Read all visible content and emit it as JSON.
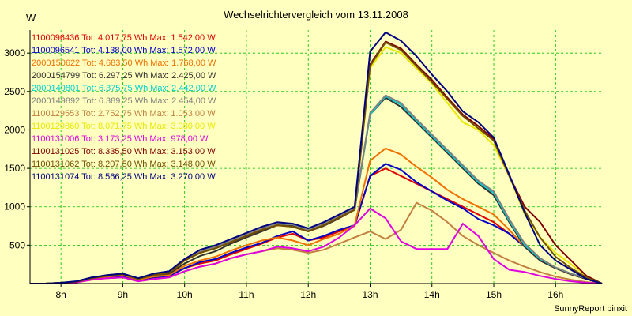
{
  "chart_data": {
    "type": "line",
    "title": "Wechselrichtervergleich vom 13.11.2008",
    "ylabel": "W",
    "footer": "SunnyReport pinxit",
    "x_ticks": [
      "8h",
      "9h",
      "10h",
      "11h",
      "12h",
      "13h",
      "14h",
      "15h",
      "16h"
    ],
    "y_ticks": [
      500,
      1000,
      1500,
      2000,
      2500,
      3000
    ],
    "ylim": [
      0,
      3300
    ],
    "grid": true,
    "legend_position": "top-left",
    "background": "#ffffc0",
    "x_times": [
      "7:30",
      "7:45",
      "8:00",
      "8:15",
      "8:30",
      "8:45",
      "9:00",
      "9:15",
      "9:30",
      "9:45",
      "10:00",
      "10:15",
      "10:30",
      "10:45",
      "11:00",
      "11:15",
      "11:30",
      "11:45",
      "12:00",
      "12:15",
      "12:30",
      "12:45",
      "13:00",
      "13:15",
      "13:30",
      "13:45",
      "14:00",
      "14:15",
      "14:30",
      "14:45",
      "15:00",
      "15:15",
      "15:30",
      "15:45",
      "16:00",
      "16:15",
      "16:30",
      "16:45"
    ],
    "series": [
      {
        "legend": "1100096436 Tot: 4.017,75 Wh Max: 1.542,00 W",
        "color": "#e00000",
        "values": [
          0,
          0,
          10,
          20,
          60,
          80,
          100,
          40,
          80,
          100,
          200,
          260,
          300,
          380,
          450,
          520,
          600,
          650,
          560,
          600,
          680,
          750,
          1400,
          1500,
          1400,
          1300,
          1200,
          1100,
          1000,
          900,
          800,
          650,
          480,
          300,
          200,
          120,
          60,
          0
        ]
      },
      {
        "legend": "1100096541 Tot: 4.138,00 Wh Max: 1.572,00 W",
        "color": "#0000c8",
        "values": [
          0,
          0,
          10,
          20,
          60,
          80,
          100,
          40,
          80,
          100,
          200,
          280,
          320,
          400,
          470,
          530,
          620,
          680,
          560,
          620,
          700,
          760,
          1400,
          1560,
          1480,
          1320,
          1200,
          1080,
          980,
          840,
          760,
          650,
          480,
          300,
          200,
          120,
          60,
          0
        ]
      },
      {
        "legend": "2000150622 Tot: 4.683,50 Wh Max: 1.768,00 W",
        "color": "#f07000",
        "values": [
          0,
          0,
          10,
          20,
          70,
          90,
          110,
          50,
          90,
          110,
          230,
          300,
          350,
          430,
          500,
          560,
          600,
          560,
          500,
          580,
          650,
          760,
          1600,
          1760,
          1680,
          1520,
          1380,
          1220,
          1100,
          1000,
          900,
          700,
          480,
          300,
          200,
          120,
          60,
          0
        ]
      },
      {
        "legend": "2000154799 Tot: 6.297,25 Wh Max: 2.425,00 W",
        "color": "#303030",
        "values": [
          0,
          0,
          10,
          25,
          80,
          100,
          120,
          60,
          110,
          130,
          260,
          360,
          420,
          520,
          600,
          680,
          760,
          750,
          680,
          750,
          850,
          960,
          2200,
          2420,
          2300,
          2100,
          1900,
          1700,
          1500,
          1300,
          1150,
          800,
          480,
          300,
          200,
          120,
          60,
          0
        ]
      },
      {
        "legend": "2000149801 Tot: 6.375,75 Wh Max: 2.442,00 W",
        "color": "#00d0d0",
        "values": [
          0,
          0,
          10,
          30,
          80,
          110,
          130,
          70,
          130,
          160,
          320,
          420,
          480,
          560,
          640,
          720,
          780,
          770,
          700,
          780,
          880,
          980,
          2200,
          2440,
          2330,
          2120,
          1920,
          1720,
          1520,
          1320,
          1180,
          820,
          500,
          320,
          210,
          130,
          70,
          0
        ]
      },
      {
        "legend": "2000149892 Tot: 6.389,25 Wh Max: 2.454,00 W",
        "color": "#808080",
        "values": [
          0,
          0,
          10,
          30,
          80,
          110,
          130,
          70,
          130,
          160,
          320,
          420,
          480,
          560,
          640,
          720,
          780,
          770,
          700,
          780,
          880,
          980,
          2220,
          2450,
          2350,
          2140,
          1940,
          1740,
          1540,
          1340,
          1200,
          840,
          520,
          330,
          210,
          130,
          70,
          0
        ]
      },
      {
        "legend": "1100129553 Tot: 2.752,75 Wh Max: 1.053,00 W",
        "color": "#c08040",
        "values": [
          0,
          0,
          5,
          15,
          50,
          70,
          80,
          30,
          60,
          80,
          160,
          220,
          260,
          330,
          380,
          420,
          460,
          440,
          400,
          440,
          520,
          600,
          680,
          580,
          700,
          1053,
          950,
          800,
          620,
          500,
          400,
          300,
          220,
          150,
          90,
          50,
          20,
          0
        ]
      },
      {
        "legend": "1100129860 Tot: 8.071,75 Wh Max: 3.080,00 W",
        "color": "#e8e800",
        "values": [
          0,
          0,
          10,
          25,
          70,
          100,
          120,
          60,
          110,
          140,
          300,
          400,
          460,
          540,
          620,
          700,
          760,
          740,
          680,
          760,
          860,
          960,
          2800,
          3080,
          3000,
          2800,
          2600,
          2350,
          2100,
          2000,
          1800,
          1400,
          900,
          600,
          400,
          250,
          100,
          0
        ]
      },
      {
        "legend": "1100131006 Tot: 3.173,25 Wh Max: 978,00 W",
        "color": "#e000e0",
        "values": [
          0,
          0,
          5,
          15,
          50,
          70,
          80,
          30,
          60,
          80,
          160,
          220,
          260,
          330,
          380,
          420,
          480,
          460,
          420,
          480,
          600,
          760,
          978,
          850,
          550,
          450,
          450,
          450,
          780,
          620,
          320,
          180,
          150,
          100,
          60,
          30,
          10,
          0
        ]
      },
      {
        "legend": "1100131025 Tot: 8.335,50 Wh Max: 3.153,00 W",
        "color": "#800000",
        "values": [
          0,
          0,
          10,
          25,
          70,
          100,
          120,
          60,
          110,
          140,
          300,
          400,
          460,
          540,
          620,
          700,
          760,
          740,
          680,
          760,
          860,
          960,
          2850,
          3150,
          3060,
          2850,
          2650,
          2420,
          2200,
          2050,
          1880,
          1400,
          1000,
          800,
          500,
          300,
          100,
          0
        ]
      },
      {
        "legend": "1100131062 Tot: 8.207,50 Wh Max: 3.148,00 W",
        "color": "#705000",
        "values": [
          0,
          0,
          10,
          25,
          70,
          100,
          120,
          60,
          110,
          140,
          300,
          400,
          460,
          540,
          620,
          700,
          760,
          740,
          680,
          760,
          860,
          960,
          2830,
          3140,
          3040,
          2830,
          2620,
          2400,
          2180,
          2020,
          1860,
          1400,
          950,
          600,
          350,
          200,
          80,
          0
        ]
      },
      {
        "legend": "1100131074 Tot: 8.566,25 Wh Max: 3.270,00 W",
        "color": "#000080",
        "values": [
          0,
          0,
          10,
          30,
          80,
          110,
          130,
          70,
          130,
          160,
          320,
          440,
          500,
          580,
          660,
          740,
          800,
          780,
          720,
          800,
          900,
          1000,
          3020,
          3270,
          3160,
          2960,
          2720,
          2500,
          2240,
          2100,
          1900,
          1420,
          920,
          500,
          300,
          180,
          60,
          0
        ]
      }
    ]
  }
}
